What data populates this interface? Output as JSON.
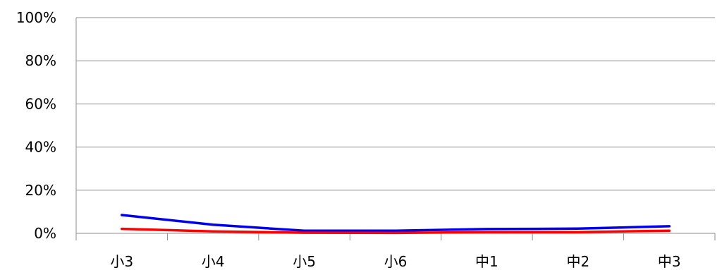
{
  "chart_data": {
    "type": "line",
    "categories": [
      "小3",
      "小4",
      "小5",
      "小6",
      "中1",
      "中2",
      "中3"
    ],
    "ytick_labels": [
      "0%",
      "20%",
      "40%",
      "60%",
      "80%",
      "100%"
    ],
    "ylim": [
      0,
      100
    ],
    "grid": true,
    "legend": "none",
    "series": [
      {
        "color": "#0000ee",
        "values": [
          8.5,
          4,
          1.2,
          1.2,
          2,
          2.2,
          3.3
        ]
      },
      {
        "color": "#ff0000",
        "values": [
          2.1,
          0.9,
          0.3,
          0.2,
          0.6,
          0.6,
          1.2
        ]
      }
    ]
  }
}
